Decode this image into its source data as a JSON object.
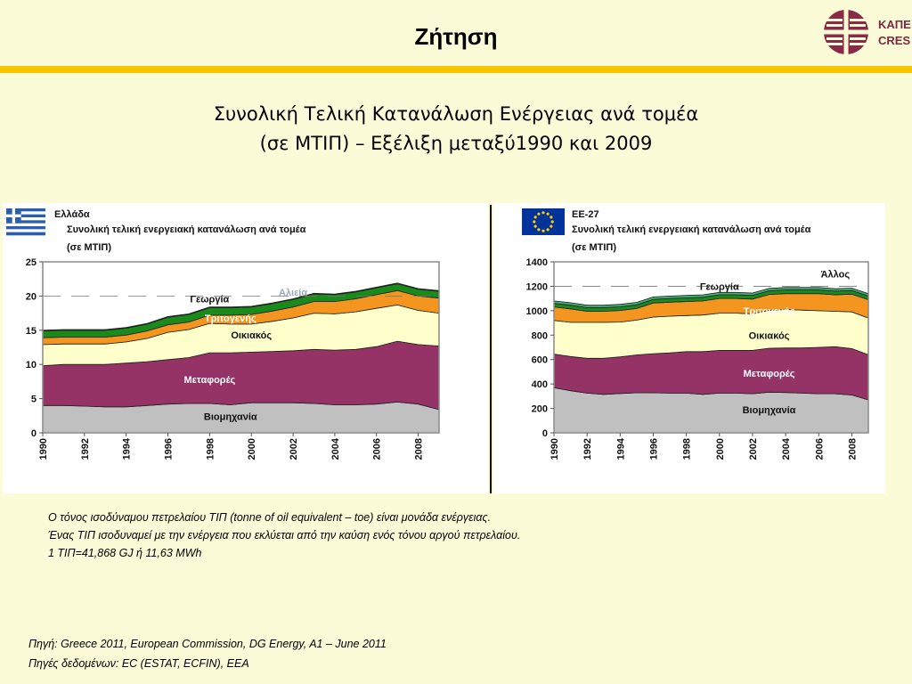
{
  "header": {
    "title": "Ζήτηση",
    "logo_line1": "ΚΑΠΕ",
    "logo_line2": "CRES"
  },
  "main": {
    "title_line1": "Συνολική Τελική Κατανάλωση Ενέργειας ανά τομέα",
    "title_line2": "(σε ΜΤΙΠ) – Εξέλιξη μεταξύ1990 και 2009"
  },
  "note": {
    "line1": "Ο τόνος ισοδύναμου πετρελαίου ΤΙΠ (tonne of oil equivalent – toe) είναι μονάδα ενέργειας.",
    "line2": "Ένας ΤΙΠ ισοδυναμεί με την ενέργεια που εκλύεται από την καύση ενός τόνου αργού πετρελαίου.",
    "line3": "1 ΤΙΠ=41,868 GJ ή 11,63 MWh"
  },
  "source": {
    "line1": "Πηγή: Greece 2011, European Commission, DG Energy, A1 – June 2011",
    "line2": "Πηγές δεδομένων: EC (ESTAT, ECFIN), EEA"
  },
  "colors": {
    "industry": "#c0c0c0",
    "transport": "#963366",
    "households": "#ffffcc",
    "tertiary": "#f4951f",
    "agriculture": "#1a8a1a",
    "fisheries": "#88aaaa",
    "other": "#44aa77"
  },
  "chart_data": [
    {
      "type": "area",
      "stacked": true,
      "region": "Ελλάδα",
      "flag": "greece-flag",
      "title": "Συνολική τελική ενεργειακή κατανάλωση ανά τομέα",
      "subtitle": "(σε ΜΤΙΠ)",
      "x": [
        1990,
        1991,
        1992,
        1993,
        1994,
        1995,
        1996,
        1997,
        1998,
        1999,
        2000,
        2001,
        2002,
        2003,
        2004,
        2005,
        2006,
        2007,
        2008,
        2009
      ],
      "xticks": [
        "1990",
        "1992",
        "1994",
        "1996",
        "1998",
        "2000",
        "2002",
        "2004",
        "2006",
        "2008"
      ],
      "ylim": [
        0,
        25
      ],
      "yticks": [
        "0",
        "5",
        "10",
        "15",
        "20",
        "25"
      ],
      "series": [
        {
          "name": "Βιομηχανία",
          "color": "#c0c0c0",
          "values": [
            4.0,
            4.0,
            3.9,
            3.8,
            3.8,
            4.0,
            4.2,
            4.3,
            4.3,
            4.1,
            4.4,
            4.4,
            4.4,
            4.3,
            4.1,
            4.1,
            4.2,
            4.5,
            4.2,
            3.4
          ]
        },
        {
          "name": "Μεταφορές",
          "color": "#963366",
          "values": [
            5.8,
            6.0,
            6.1,
            6.2,
            6.4,
            6.4,
            6.5,
            6.7,
            7.4,
            7.6,
            7.4,
            7.5,
            7.6,
            7.9,
            8.0,
            8.1,
            8.4,
            8.9,
            8.7,
            9.3
          ]
        },
        {
          "name": "Οικιακός",
          "color": "#ffffcc",
          "values": [
            3.1,
            3.0,
            3.0,
            3.0,
            3.1,
            3.4,
            4.0,
            4.1,
            4.3,
            4.2,
            4.1,
            4.4,
            4.8,
            5.3,
            5.3,
            5.5,
            5.6,
            5.3,
            5.0,
            4.8
          ]
        },
        {
          "name": "Τριτογενής",
          "color": "#f4951f",
          "values": [
            1.0,
            1.0,
            1.0,
            1.0,
            1.0,
            1.1,
            1.1,
            1.1,
            1.2,
            1.3,
            1.4,
            1.5,
            1.6,
            1.7,
            1.8,
            1.9,
            2.0,
            2.1,
            2.1,
            2.2
          ]
        },
        {
          "name": "Γεωργία",
          "color": "#1a8a1a",
          "values": [
            1.0,
            1.0,
            1.0,
            1.0,
            1.0,
            1.0,
            1.1,
            1.1,
            1.1,
            1.1,
            1.1,
            1.1,
            1.1,
            1.1,
            1.0,
            1.0,
            1.0,
            1.0,
            1.0,
            1.0
          ]
        },
        {
          "name": "Αλιεία",
          "color": "#88aaaa",
          "values": [
            0.1,
            0.1,
            0.1,
            0.1,
            0.1,
            0.1,
            0.1,
            0.1,
            0.1,
            0.1,
            0.1,
            0.1,
            0.1,
            0.1,
            0.1,
            0.1,
            0.1,
            0.1,
            0.1,
            0.1
          ]
        }
      ]
    },
    {
      "type": "area",
      "stacked": true,
      "region": "ΕΕ-27",
      "flag": "eu-flag",
      "title": "Συνολική τελική ενεργειακή κατανάλωση ανά τομέα",
      "subtitle": "(σε ΜΤΙΠ)",
      "x": [
        1990,
        1991,
        1992,
        1993,
        1994,
        1995,
        1996,
        1997,
        1998,
        1999,
        2000,
        2001,
        2002,
        2003,
        2004,
        2005,
        2006,
        2007,
        2008,
        2009
      ],
      "xticks": [
        "1990",
        "1992",
        "1994",
        "1996",
        "1998",
        "2000",
        "2002",
        "2004",
        "2006",
        "2008"
      ],
      "ylim": [
        0,
        1400
      ],
      "yticks": [
        "0",
        "200",
        "400",
        "600",
        "800",
        "1000",
        "1200",
        "1400"
      ],
      "series": [
        {
          "name": "Βιομηχανία",
          "color": "#c0c0c0",
          "values": [
            370,
            345,
            325,
            315,
            322,
            328,
            328,
            325,
            325,
            315,
            325,
            325,
            320,
            333,
            330,
            325,
            320,
            320,
            310,
            270
          ]
        },
        {
          "name": "Μεταφορές",
          "color": "#963366",
          "values": [
            275,
            280,
            285,
            295,
            300,
            310,
            320,
            330,
            340,
            350,
            350,
            350,
            355,
            360,
            365,
            370,
            380,
            385,
            380,
            370
          ]
        },
        {
          "name": "Οικιακός",
          "color": "#ffffcc",
          "values": [
            275,
            280,
            295,
            295,
            285,
            285,
            300,
            300,
            295,
            300,
            305,
            305,
            300,
            310,
            315,
            310,
            300,
            290,
            300,
            300
          ]
        },
        {
          "name": "Τριτογενής",
          "color": "#f4951f",
          "values": [
            110,
            110,
            90,
            90,
            95,
            95,
            115,
            115,
            115,
            115,
            120,
            120,
            120,
            130,
            130,
            135,
            140,
            135,
            145,
            150
          ]
        },
        {
          "name": "Γεωργία",
          "color": "#1a8a1a",
          "values": [
            30,
            30,
            30,
            30,
            30,
            30,
            30,
            30,
            30,
            30,
            30,
            30,
            30,
            30,
            30,
            30,
            30,
            30,
            30,
            30
          ]
        },
        {
          "name": "Άλλος",
          "color": "#44aa77",
          "values": [
            20,
            20,
            20,
            20,
            20,
            20,
            20,
            20,
            20,
            20,
            20,
            20,
            20,
            20,
            20,
            20,
            20,
            20,
            20,
            20
          ]
        }
      ]
    }
  ]
}
